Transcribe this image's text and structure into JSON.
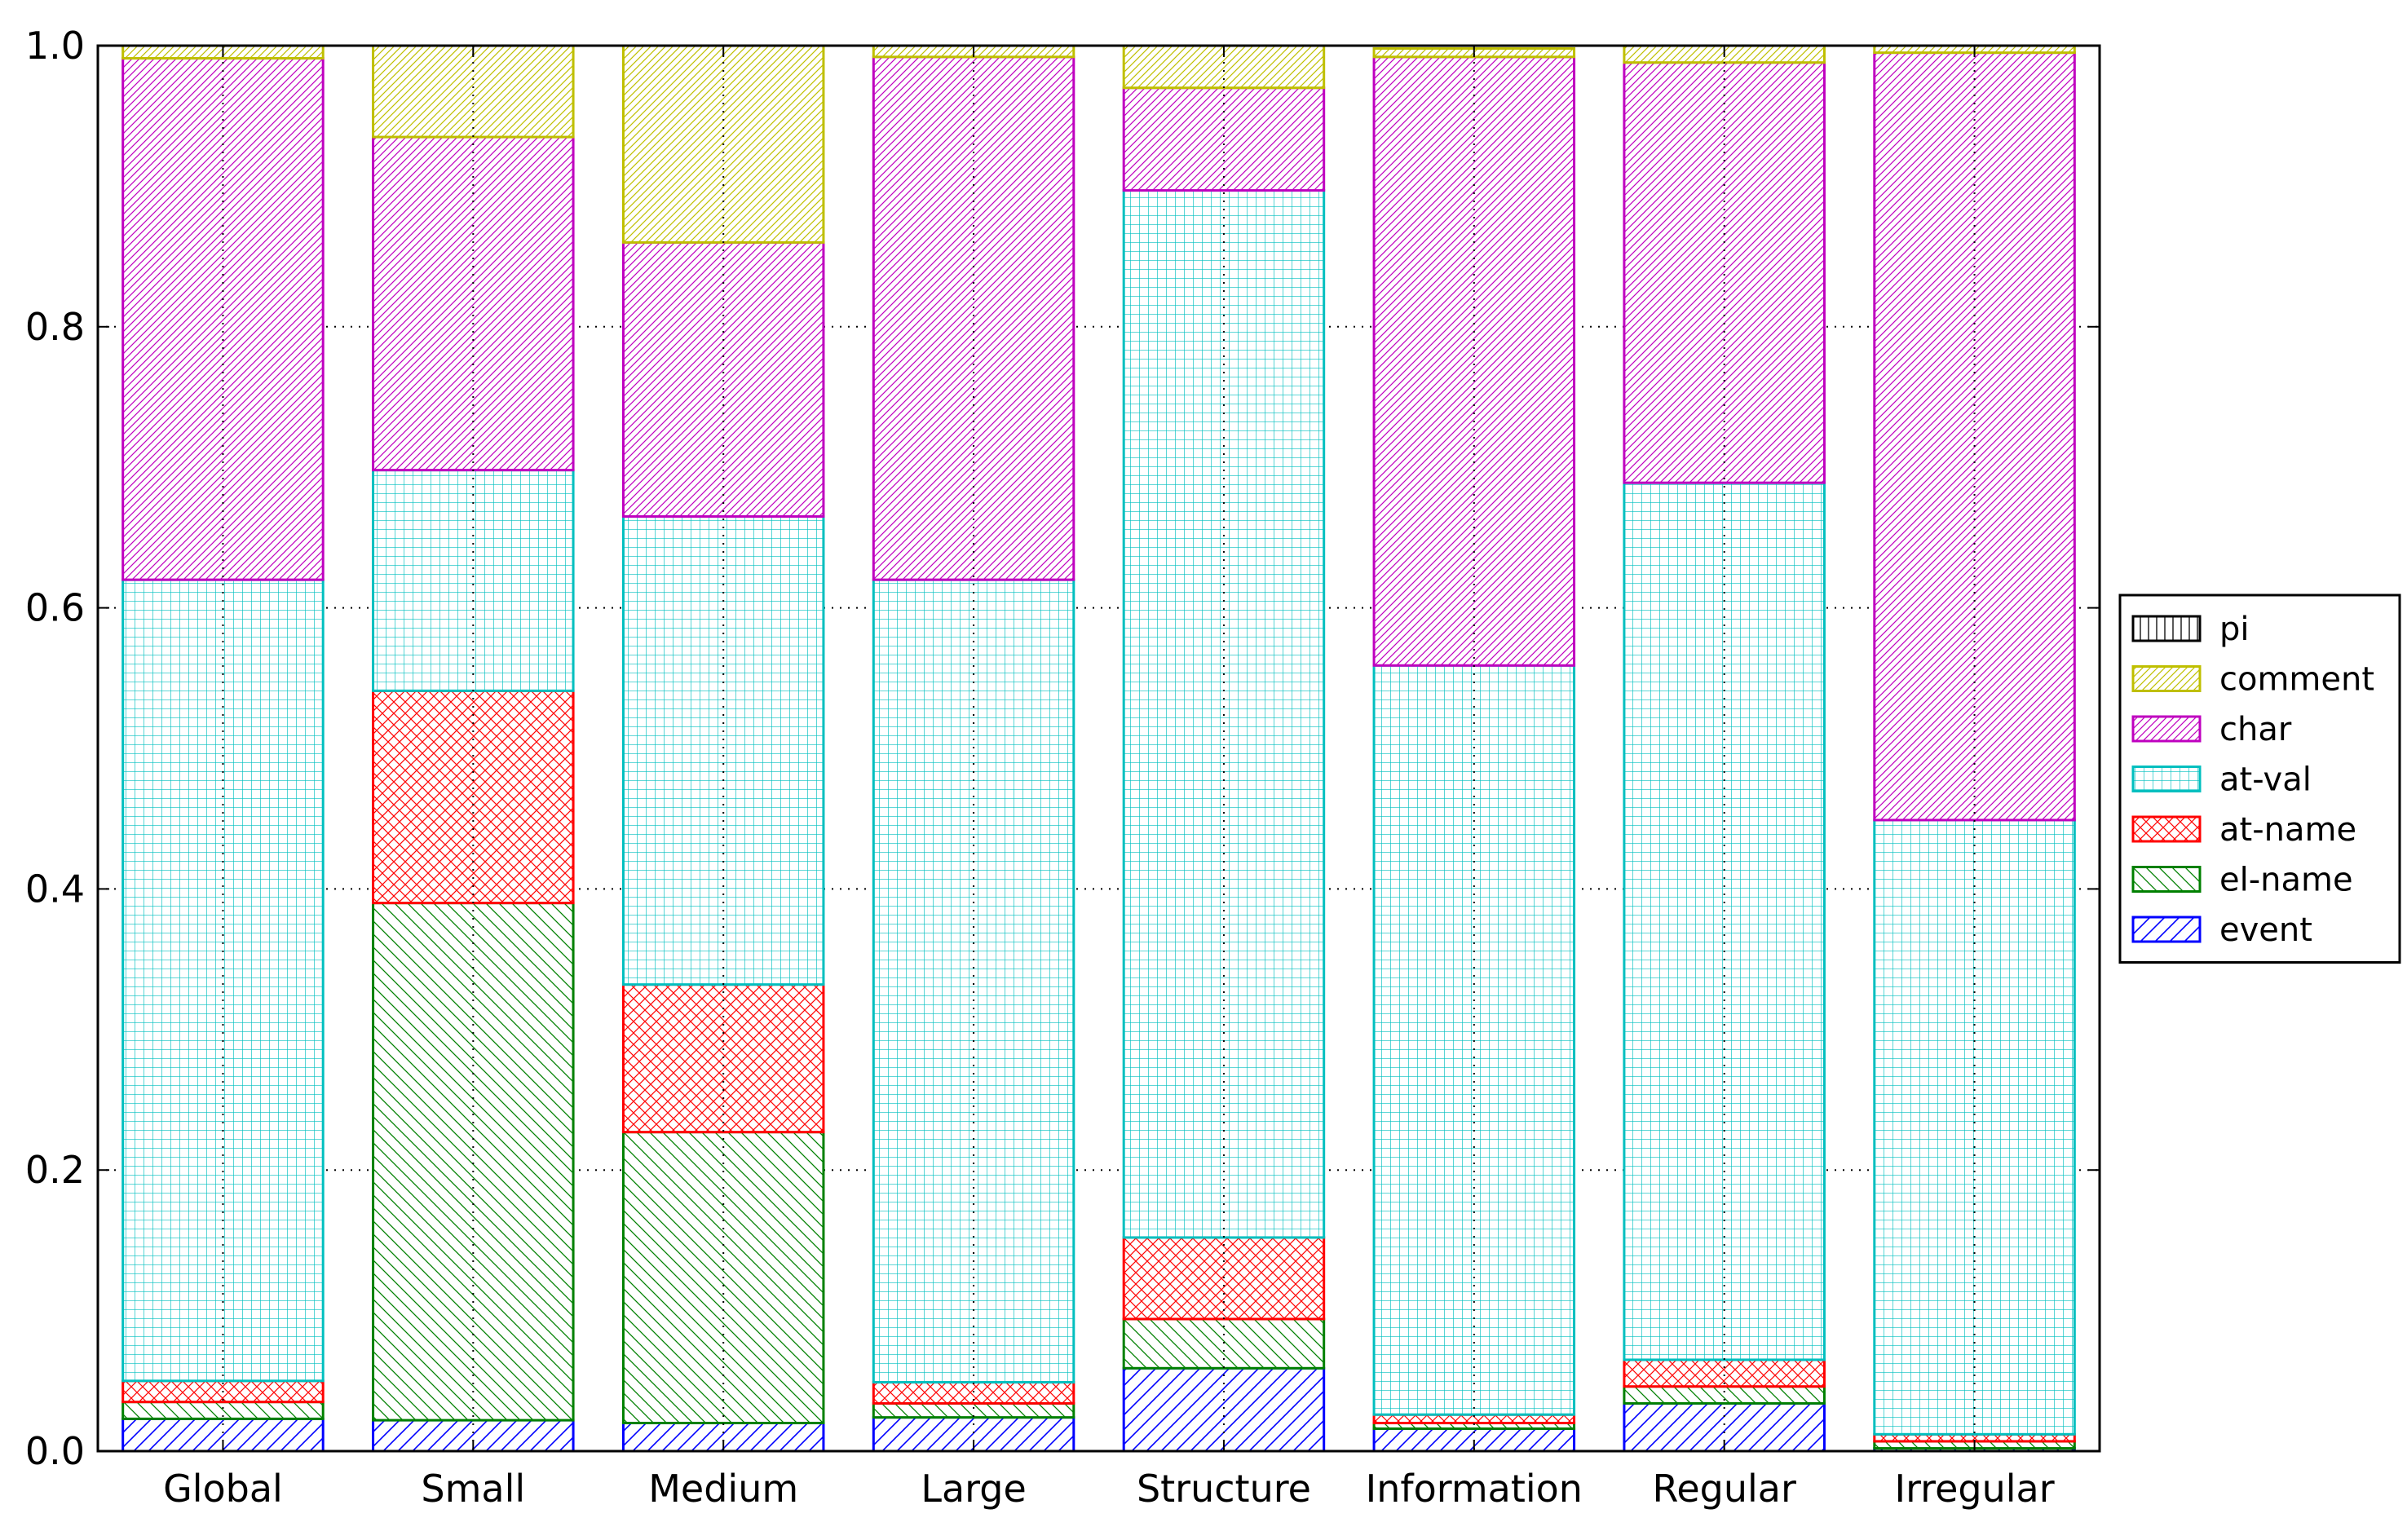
{
  "chart_data": {
    "type": "bar",
    "stacked": true,
    "normalized": true,
    "categories": [
      "Global",
      "Small",
      "Medium",
      "Large",
      "Structure",
      "Information",
      "Regular",
      "Irregular"
    ],
    "ylim": [
      0,
      1.0
    ],
    "yticks": [
      "0.0",
      "0.2",
      "0.4",
      "0.6",
      "0.8",
      "1.0"
    ],
    "ytick_values": [
      0.0,
      0.2,
      0.4,
      0.6,
      0.8,
      1.0
    ],
    "grid": true,
    "legend_position": "right, outside plot, vertically centered",
    "series": [
      {
        "name": "event",
        "color": "#0000ff",
        "hatch": "diag-right",
        "values": [
          0.023,
          0.022,
          0.02,
          0.024,
          0.059,
          0.016,
          0.034,
          0.002
        ]
      },
      {
        "name": "el-name",
        "color": "#008000",
        "hatch": "diag-left",
        "values": [
          0.012,
          0.368,
          0.207,
          0.01,
          0.035,
          0.004,
          0.012,
          0.005
        ]
      },
      {
        "name": "at-name",
        "color": "#ff0000",
        "hatch": "crosshatch",
        "values": [
          0.015,
          0.151,
          0.105,
          0.015,
          0.058,
          0.006,
          0.019,
          0.005
        ]
      },
      {
        "name": "at-val",
        "color": "#00bfbf",
        "hatch": "grid",
        "values": [
          0.57,
          0.157,
          0.333,
          0.571,
          0.745,
          0.533,
          0.624,
          0.437
        ]
      },
      {
        "name": "char",
        "color": "#bf00bf",
        "hatch": "diag-dense",
        "values": [
          0.371,
          0.237,
          0.195,
          0.372,
          0.073,
          0.433,
          0.299,
          0.546
        ]
      },
      {
        "name": "comment",
        "color": "#bfbf00",
        "hatch": "diag-dense",
        "values": [
          0.009,
          0.065,
          0.14,
          0.008,
          0.03,
          0.006,
          0.012,
          0.005
        ]
      },
      {
        "name": "pi",
        "color": "#000000",
        "hatch": "vertical",
        "values": [
          0.0,
          0.0,
          0.0,
          0.0,
          0.0,
          0.0,
          0.0,
          0.0
        ]
      }
    ]
  }
}
